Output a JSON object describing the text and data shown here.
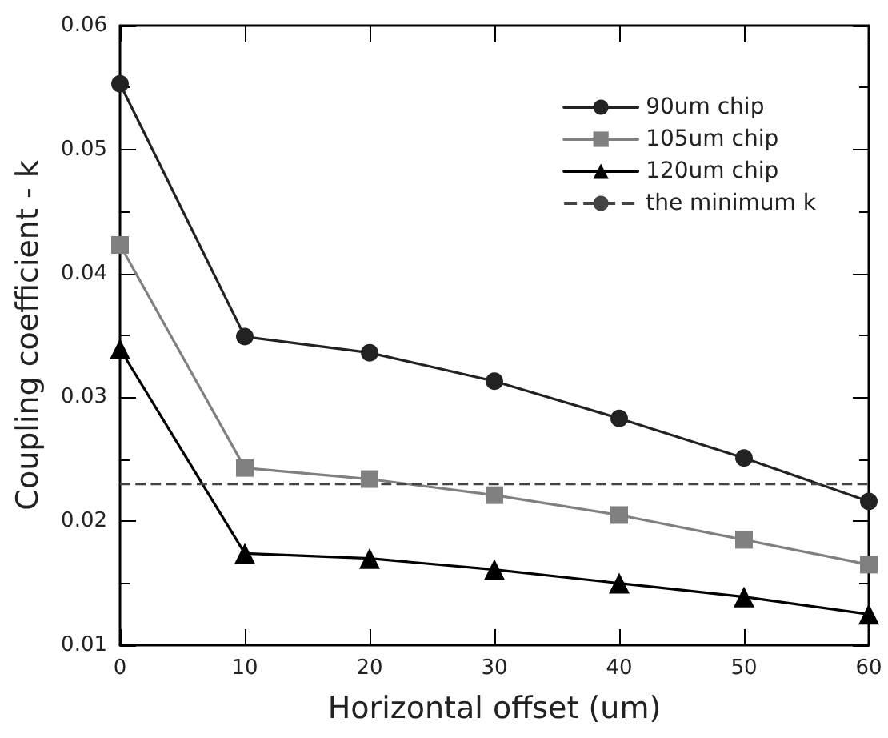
{
  "chart_data": {
    "type": "line",
    "xlabel": "Horizontal offset (um)",
    "ylabel": "Coupling coefficient - k",
    "x": [
      0,
      10,
      20,
      30,
      40,
      50,
      60
    ],
    "series": [
      {
        "name": "90um chip",
        "color": "#222222",
        "marker": "circle",
        "values": [
          0.0553,
          0.0349,
          0.0336,
          0.0313,
          0.0283,
          0.0251,
          0.0216
        ]
      },
      {
        "name": "105um chip",
        "color": "#808080",
        "marker": "square",
        "values": [
          0.0423,
          0.0243,
          0.0234,
          0.0221,
          0.0205,
          0.0185,
          0.0165
        ]
      },
      {
        "name": "120um chip",
        "color": "#000000",
        "marker": "triangle",
        "values": [
          0.0339,
          0.0174,
          0.017,
          0.0161,
          0.015,
          0.0139,
          0.0125
        ]
      }
    ],
    "ref_lines": [
      {
        "axis": "y",
        "value": 0.023,
        "label": "the minimum k",
        "color": "#444444",
        "line_style": "dashed"
      }
    ],
    "xlim": [
      0,
      60
    ],
    "xticks": [
      0,
      10,
      20,
      30,
      40,
      50,
      60
    ],
    "ylim": [
      0.01,
      0.06
    ],
    "yticks": [
      0.01,
      0.02,
      0.03,
      0.04,
      0.05,
      0.06
    ],
    "grid": false,
    "legend": "top right",
    "line_style": "solid"
  }
}
